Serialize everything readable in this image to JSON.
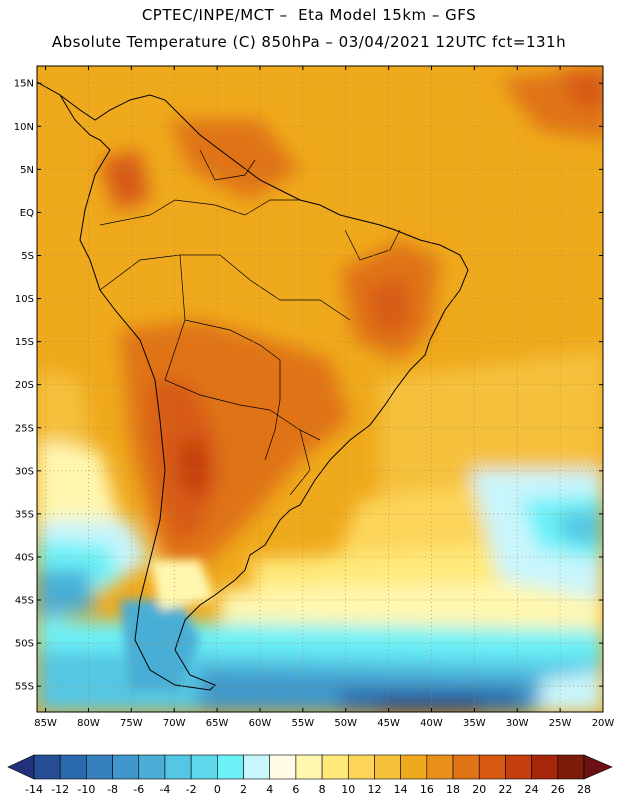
{
  "header": {
    "line1": "CPTEC/INPE/MCT –  Eta Model 15km – GFS",
    "line2": "Absolute Temperature (C) 850hPa – 03/04/2021 12UTC fct=131h"
  },
  "map": {
    "lat_labels": [
      "15N",
      "10N",
      "5N",
      "EQ",
      "5S",
      "10S",
      "15S",
      "20S",
      "25S",
      "30S",
      "35S",
      "40S",
      "45S",
      "50S",
      "55S"
    ],
    "lon_labels": [
      "85W",
      "80W",
      "75W",
      "70W",
      "65W",
      "60W",
      "55W",
      "50W",
      "45W",
      "40W",
      "35W",
      "30W",
      "25W",
      "20W"
    ],
    "lat_range": [
      17,
      -58
    ],
    "lon_range": [
      -86,
      -20
    ],
    "grid": true
  },
  "colorbar": {
    "levels": [
      "-14",
      "-12",
      "-10",
      "-8",
      "-6",
      "-4",
      "-2",
      "0",
      "2",
      "4",
      "6",
      "8",
      "10",
      "12",
      "14",
      "16",
      "18",
      "20",
      "22",
      "24",
      "26",
      "28"
    ],
    "colors": [
      "#23307c",
      "#254e96",
      "#2b6aad",
      "#3580bd",
      "#3f97cb",
      "#4aaed6",
      "#55c6e3",
      "#60d9ec",
      "#6cf1f8",
      "#c9f5fc",
      "#fffbe6",
      "#fff7b0",
      "#ffe97a",
      "#fcd55a",
      "#f5c13c",
      "#efa91c",
      "#e8901a",
      "#e07315",
      "#d75a12",
      "#c43e0e",
      "#a6260a",
      "#7b1b0a",
      "#6c1216"
    ]
  }
}
